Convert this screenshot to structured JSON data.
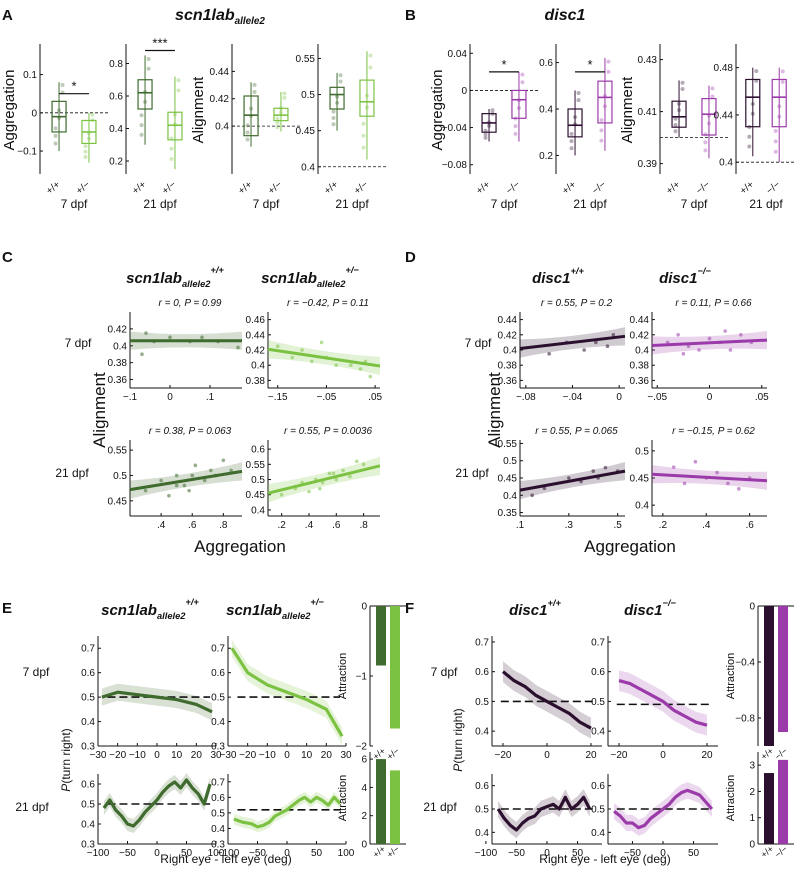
{
  "colors": {
    "scn_wt": "#3f6b2f",
    "scn_mut": "#7cc242",
    "disc_wt": "#2b0f2f",
    "disc_mut": "#9b3aa9"
  },
  "panel_labels": [
    "A",
    "B",
    "C",
    "D",
    "E",
    "F"
  ],
  "headers": {
    "A": {
      "main": "scn1lab",
      "sub": "allele2"
    },
    "B": {
      "main": "disc1"
    },
    "C1": {
      "main": "scn1lab",
      "sub": "allele2",
      "sup": "+/+"
    },
    "C2": {
      "main": "scn1lab",
      "sub": "allele2",
      "sup": "+/−"
    },
    "D1": {
      "main": "disc1",
      "sup": "+/+"
    },
    "D2": {
      "main": "disc1",
      "sup": "−/−"
    },
    "E1": {
      "main": "scn1lab",
      "sub": "allele2",
      "sup": "+/+"
    },
    "E2": {
      "main": "scn1lab",
      "sub": "allele2",
      "sup": "+/−"
    },
    "F1": {
      "main": "disc1",
      "sup": "+/+"
    },
    "F2": {
      "main": "disc1",
      "sup": "−/−"
    }
  },
  "labels": {
    "aggregation": "Aggregation",
    "alignment": "Alignment",
    "attraction": "Attraction",
    "p_turn": "P",
    "p_turn_rest": "(turn right)",
    "xlabel_turn": "Right eye - left eye (deg)",
    "dpf7": "7 dpf",
    "dpf21": "21 dpf",
    "geno_scn": [
      "+/+",
      "+/−"
    ],
    "geno_disc": [
      "+/+",
      "−/−"
    ],
    "geno_scn_tick": [
      "+/+",
      "+/−"
    ],
    "geno_disc_tick": [
      "+/+",
      "−/−"
    ]
  },
  "chart_data": [
    {
      "id": "A-agg-7",
      "type": "box",
      "ylabel": "Aggregation",
      "xlabel": "7 dpf",
      "ylim": [
        -0.16,
        0.18
      ],
      "yticks": [
        -0.1,
        0,
        0.1
      ],
      "refline": 0,
      "categories": [
        "+/+",
        "+/−"
      ],
      "boxes": [
        {
          "q1": -0.05,
          "median": -0.01,
          "q3": 0.03,
          "whislo": -0.1,
          "whishi": 0.08
        },
        {
          "q1": -0.08,
          "median": -0.05,
          "q3": -0.02,
          "whislo": -0.13,
          "whishi": 0.0
        }
      ],
      "sig": {
        "text": "*",
        "pair": [
          0,
          1
        ],
        "y": 0.05
      }
    },
    {
      "id": "A-agg-21",
      "type": "box",
      "ylabel": "",
      "xlabel": "21 dpf",
      "ylim": [
        0.12,
        0.92
      ],
      "yticks": [
        0.2,
        0.4,
        0.6,
        0.8
      ],
      "categories": [
        "+/+",
        "+/−"
      ],
      "boxes": [
        {
          "q1": 0.52,
          "median": 0.62,
          "q3": 0.7,
          "whislo": 0.3,
          "whishi": 0.85
        },
        {
          "q1": 0.33,
          "median": 0.42,
          "q3": 0.5,
          "whislo": 0.15,
          "whishi": 0.72
        }
      ],
      "sig": {
        "text": "***",
        "pair": [
          0,
          1
        ],
        "y": 0.88
      }
    },
    {
      "id": "A-ali-7",
      "type": "box",
      "ylabel": "Alignment",
      "xlabel": "7 dpf",
      "ylim": [
        0.365,
        0.46
      ],
      "yticks": [
        0.4,
        0.42,
        0.44
      ],
      "refline": 0.4,
      "categories": [
        "+/+",
        "+/−"
      ],
      "boxes": [
        {
          "q1": 0.393,
          "median": 0.408,
          "q3": 0.422,
          "whislo": 0.385,
          "whishi": 0.432
        },
        {
          "q1": 0.404,
          "median": 0.408,
          "q3": 0.413,
          "whislo": 0.396,
          "whishi": 0.425
        }
      ]
    },
    {
      "id": "A-ali-21",
      "type": "box",
      "ylabel": "",
      "xlabel": "21 dpf",
      "ylim": [
        0.39,
        0.57
      ],
      "yticks": [
        0.4,
        0.45,
        0.5,
        0.55
      ],
      "refline": 0.4,
      "categories": [
        "+/+",
        "+/−"
      ],
      "boxes": [
        {
          "q1": 0.48,
          "median": 0.5,
          "q3": 0.51,
          "whislo": 0.45,
          "whishi": 0.53
        },
        {
          "q1": 0.47,
          "median": 0.49,
          "q3": 0.52,
          "whislo": 0.41,
          "whishi": 0.56
        }
      ]
    },
    {
      "id": "B-agg-7",
      "type": "box",
      "ylabel": "Aggregation",
      "xlabel": "7 dpf",
      "ylim": [
        -0.09,
        0.05
      ],
      "yticks": [
        -0.08,
        -0.04,
        0,
        0.04
      ],
      "refline": 0,
      "categories": [
        "+/+",
        "−/−"
      ],
      "boxes": [
        {
          "q1": -0.045,
          "median": -0.035,
          "q3": -0.025,
          "whislo": -0.055,
          "whishi": -0.02
        },
        {
          "q1": -0.03,
          "median": -0.01,
          "q3": 0.0,
          "whislo": -0.055,
          "whishi": 0.02
        }
      ],
      "sig": {
        "text": "*",
        "pair": [
          0,
          1
        ],
        "y": 0.02
      }
    },
    {
      "id": "B-agg-21",
      "type": "box",
      "ylabel": "",
      "xlabel": "21 dpf",
      "ylim": [
        0.12,
        0.68
      ],
      "yticks": [
        0.2,
        0.4,
        0.6
      ],
      "categories": [
        "+/+",
        "−/−"
      ],
      "boxes": [
        {
          "q1": 0.28,
          "median": 0.33,
          "q3": 0.4,
          "whislo": 0.2,
          "whishi": 0.48
        },
        {
          "q1": 0.34,
          "median": 0.45,
          "q3": 0.52,
          "whislo": 0.22,
          "whishi": 0.62
        }
      ],
      "sig": {
        "text": "*",
        "pair": [
          0,
          1
        ],
        "y": 0.56
      }
    },
    {
      "id": "B-ali-7",
      "type": "box",
      "ylabel": "Alignment",
      "xlabel": "7 dpf",
      "ylim": [
        0.386,
        0.436
      ],
      "yticks": [
        0.39,
        0.41,
        0.43
      ],
      "refline": 0.4,
      "categories": [
        "+/+",
        "−/−"
      ],
      "boxes": [
        {
          "q1": 0.404,
          "median": 0.408,
          "q3": 0.414,
          "whislo": 0.4,
          "whishi": 0.422
        },
        {
          "q1": 0.401,
          "median": 0.409,
          "q3": 0.415,
          "whislo": 0.392,
          "whishi": 0.42
        }
      ]
    },
    {
      "id": "B-ali-21",
      "type": "box",
      "ylabel": "",
      "xlabel": "21 dpf",
      "ylim": [
        0.39,
        0.5
      ],
      "yticks": [
        0.4,
        0.44,
        0.48
      ],
      "refline": 0.4,
      "categories": [
        "+/+",
        "−/−"
      ],
      "boxes": [
        {
          "q1": 0.43,
          "median": 0.455,
          "q3": 0.47,
          "whislo": 0.405,
          "whishi": 0.48
        },
        {
          "q1": 0.43,
          "median": 0.455,
          "q3": 0.47,
          "whislo": 0.4,
          "whishi": 0.48
        }
      ]
    },
    {
      "id": "C-7-wt",
      "type": "scatter",
      "stat": "r = 0, P = 0.99",
      "xlim": [
        -0.1,
        0.18
      ],
      "xticks": [
        -0.1,
        0,
        0.1
      ],
      "ylim": [
        0.35,
        0.44
      ],
      "yticks": [
        0.36,
        0.38,
        0.4,
        0.42
      ],
      "x": [
        -0.06,
        -0.04,
        0.0,
        0.05,
        0.08,
        0.12,
        0.17,
        -0.07
      ],
      "y": [
        0.415,
        0.405,
        0.41,
        0.405,
        0.41,
        0.405,
        0.398,
        0.39
      ],
      "fit": [
        0.406,
        0.406
      ]
    },
    {
      "id": "C-7-mut",
      "type": "scatter",
      "stat": "r = −0.42, P = 0.11",
      "xlim": [
        -0.17,
        0.06
      ],
      "xticks": [
        -0.15,
        -0.05,
        0.05
      ],
      "ylim": [
        0.37,
        0.47
      ],
      "yticks": [
        0.38,
        0.4,
        0.42,
        0.44,
        0.46
      ],
      "x": [
        -0.15,
        -0.12,
        -0.1,
        -0.08,
        -0.05,
        -0.03,
        0.0,
        0.02,
        0.04,
        -0.06,
        0.03
      ],
      "y": [
        0.425,
        0.41,
        0.42,
        0.405,
        0.41,
        0.4,
        0.4,
        0.395,
        0.385,
        0.43,
        0.405
      ],
      "fit": [
        0.421,
        0.399
      ]
    },
    {
      "id": "C-21-wt",
      "type": "scatter",
      "stat": "r = 0.38, P = 0.063",
      "xlim": [
        0.2,
        0.92
      ],
      "xticks": [
        0.4,
        0.6,
        0.8
      ],
      "ylim": [
        0.42,
        0.57
      ],
      "yticks": [
        0.45,
        0.5,
        0.55
      ],
      "x": [
        0.3,
        0.4,
        0.45,
        0.5,
        0.55,
        0.6,
        0.62,
        0.68,
        0.72,
        0.75,
        0.8,
        0.85,
        0.5,
        0.58
      ],
      "y": [
        0.47,
        0.49,
        0.46,
        0.5,
        0.48,
        0.5,
        0.52,
        0.49,
        0.51,
        0.5,
        0.53,
        0.51,
        0.48,
        0.47
      ],
      "fit": [
        0.472,
        0.508
      ]
    },
    {
      "id": "C-21-mut",
      "type": "scatter",
      "stat": "r = 0.55, P = 0.0036",
      "xlim": [
        0.1,
        0.92
      ],
      "xticks": [
        0.2,
        0.4,
        0.6,
        0.8
      ],
      "ylim": [
        0.38,
        0.63
      ],
      "yticks": [
        0.4,
        0.45,
        0.5,
        0.55,
        0.6
      ],
      "x": [
        0.2,
        0.3,
        0.35,
        0.4,
        0.45,
        0.5,
        0.55,
        0.6,
        0.65,
        0.7,
        0.75,
        0.8,
        0.48,
        0.58
      ],
      "y": [
        0.45,
        0.47,
        0.49,
        0.46,
        0.5,
        0.49,
        0.52,
        0.5,
        0.53,
        0.51,
        0.56,
        0.55,
        0.47,
        0.52
      ],
      "fit": [
        0.455,
        0.545
      ]
    },
    {
      "id": "D-7-wt",
      "type": "scatter",
      "stat": "r = 0.55, P = 0.2",
      "xlim": [
        -0.085,
        0.005
      ],
      "xticks": [
        -0.08,
        -0.04,
        0
      ],
      "ylim": [
        0.35,
        0.45
      ],
      "yticks": [
        0.36,
        0.38,
        0.4,
        0.42,
        0.44
      ],
      "x": [
        -0.06,
        -0.045,
        -0.03,
        -0.02,
        -0.01,
        -0.005
      ],
      "y": [
        0.395,
        0.41,
        0.4,
        0.41,
        0.405,
        0.42
      ],
      "fit": [
        0.402,
        0.418
      ]
    },
    {
      "id": "D-7-mut",
      "type": "scatter",
      "stat": "r = 0.11, P = 0.66",
      "xlim": [
        -0.055,
        0.055
      ],
      "xticks": [
        -0.05,
        0,
        0.05
      ],
      "ylim": [
        0.35,
        0.45
      ],
      "yticks": [
        0.36,
        0.38,
        0.4,
        0.42,
        0.44
      ],
      "x": [
        -0.04,
        -0.03,
        -0.02,
        -0.01,
        0.0,
        0.01,
        0.02,
        0.03,
        0.04,
        -0.025,
        0.015
      ],
      "y": [
        0.41,
        0.42,
        0.405,
        0.4,
        0.415,
        0.41,
        0.4,
        0.42,
        0.41,
        0.395,
        0.425
      ],
      "fit": [
        0.406,
        0.413
      ]
    },
    {
      "id": "D-21-wt",
      "type": "scatter",
      "stat": "r = 0.55, P = 0.065",
      "xlim": [
        0.1,
        0.53
      ],
      "xticks": [
        0.1,
        0.3,
        0.5
      ],
      "ylim": [
        0.34,
        0.56
      ],
      "yticks": [
        0.35,
        0.4,
        0.45,
        0.5,
        0.55
      ],
      "x": [
        0.15,
        0.2,
        0.3,
        0.35,
        0.4,
        0.42,
        0.45,
        0.5
      ],
      "y": [
        0.4,
        0.42,
        0.45,
        0.44,
        0.47,
        0.45,
        0.48,
        0.47
      ],
      "fit": [
        0.415,
        0.47
      ]
    },
    {
      "id": "D-21-mut",
      "type": "scatter",
      "stat": "r = −0.15, P = 0.62",
      "xlim": [
        0.15,
        0.68
      ],
      "xticks": [
        0.2,
        0.4,
        0.6
      ],
      "ylim": [
        0.38,
        0.52
      ],
      "yticks": [
        0.4,
        0.45,
        0.5
      ],
      "x": [
        0.25,
        0.3,
        0.35,
        0.4,
        0.45,
        0.5,
        0.55,
        0.6
      ],
      "y": [
        0.47,
        0.44,
        0.48,
        0.45,
        0.46,
        0.44,
        0.43,
        0.45
      ],
      "fit": [
        0.457,
        0.445
      ]
    },
    {
      "id": "E-7-wt",
      "type": "line",
      "xlim": [
        -30,
        30
      ],
      "xticks": [
        -30,
        -20,
        -10,
        0,
        10,
        20,
        30
      ],
      "ylim": [
        0.3,
        0.75
      ],
      "yticks": [
        0.3,
        0.4,
        0.5,
        0.6,
        0.7
      ],
      "refline": 0.5,
      "x": [
        -28,
        -20,
        -10,
        0,
        10,
        20,
        28
      ],
      "y": [
        0.5,
        0.52,
        0.51,
        0.5,
        0.49,
        0.47,
        0.44
      ]
    },
    {
      "id": "E-7-mut",
      "type": "line",
      "xlim": [
        -30,
        30
      ],
      "xticks": [
        -30,
        -20,
        -10,
        0,
        10,
        20,
        30
      ],
      "ylim": [
        0.3,
        0.75
      ],
      "yticks": [
        0.3,
        0.4,
        0.5,
        0.6,
        0.7
      ],
      "refline": 0.5,
      "x": [
        -28,
        -20,
        -10,
        0,
        10,
        20,
        28
      ],
      "y": [
        0.7,
        0.6,
        0.55,
        0.52,
        0.49,
        0.45,
        0.34
      ]
    },
    {
      "id": "E-21-wt",
      "type": "line",
      "xlim": [
        -100,
        100
      ],
      "xticks": [
        -100,
        -50,
        0,
        50,
        100
      ],
      "ylim": [
        0.3,
        0.65
      ],
      "yticks": [
        0.3,
        0.4,
        0.5,
        0.6
      ],
      "refline": 0.5,
      "x": [
        -90,
        -80,
        -70,
        -60,
        -50,
        -40,
        -30,
        -20,
        -10,
        0,
        10,
        20,
        30,
        40,
        50,
        60,
        70,
        80,
        90
      ],
      "y": [
        0.48,
        0.52,
        0.47,
        0.44,
        0.4,
        0.39,
        0.42,
        0.46,
        0.49,
        0.52,
        0.56,
        0.59,
        0.61,
        0.58,
        0.62,
        0.58,
        0.55,
        0.5,
        0.6
      ]
    },
    {
      "id": "E-21-mut",
      "type": "line",
      "xlim": [
        -100,
        100
      ],
      "xticks": [
        -100,
        -50,
        0,
        50,
        100
      ],
      "ylim": [
        0.3,
        0.75
      ],
      "yticks": [
        0.3,
        0.4,
        0.5,
        0.6,
        0.7
      ],
      "refline": 0.52,
      "x": [
        -90,
        -75,
        -60,
        -50,
        -40,
        -30,
        -20,
        -10,
        0,
        10,
        20,
        30,
        40,
        50,
        60,
        70,
        80,
        90
      ],
      "y": [
        0.46,
        0.44,
        0.43,
        0.41,
        0.42,
        0.44,
        0.48,
        0.5,
        0.52,
        0.55,
        0.58,
        0.6,
        0.57,
        0.6,
        0.58,
        0.55,
        0.6,
        0.56
      ]
    },
    {
      "id": "E-7-attr",
      "type": "bar",
      "ylabel": "Attraction",
      "categories": [
        "+/+",
        "+/−"
      ],
      "values": [
        -0.85,
        -1.75
      ],
      "ylim": [
        -2,
        0
      ],
      "yticks": [
        -2,
        -1,
        0
      ]
    },
    {
      "id": "E-21-attr",
      "type": "bar",
      "ylabel": "Attraction",
      "categories": [
        "+/+",
        "+/−"
      ],
      "values": [
        6,
        5.2
      ],
      "ylim": [
        0,
        6.5
      ],
      "yticks": [
        0,
        2,
        4,
        6
      ]
    },
    {
      "id": "F-7-wt",
      "type": "line",
      "xlim": [
        -25,
        25
      ],
      "xticks": [
        -20,
        0,
        20
      ],
      "ylim": [
        0.35,
        0.72
      ],
      "yticks": [
        0.4,
        0.5,
        0.6,
        0.7
      ],
      "refline": 0.5,
      "x": [
        -20,
        -15,
        -10,
        -5,
        0,
        5,
        10,
        15,
        20
      ],
      "y": [
        0.6,
        0.57,
        0.55,
        0.52,
        0.5,
        0.48,
        0.46,
        0.43,
        0.41
      ]
    },
    {
      "id": "F-7-mut",
      "type": "line",
      "xlim": [
        -25,
        25
      ],
      "xticks": [
        -20,
        0,
        20
      ],
      "ylim": [
        0.35,
        0.72
      ],
      "yticks": [
        0.4,
        0.5,
        0.6,
        0.7
      ],
      "refline": 0.49,
      "x": [
        -20,
        -15,
        -10,
        -5,
        0,
        5,
        10,
        15,
        20
      ],
      "y": [
        0.57,
        0.56,
        0.54,
        0.52,
        0.5,
        0.47,
        0.45,
        0.43,
        0.42
      ]
    },
    {
      "id": "F-21-wt",
      "type": "line",
      "xlim": [
        -90,
        90
      ],
      "xticks": [
        -100,
        -50,
        0,
        50
      ],
      "ylim": [
        0.35,
        0.65
      ],
      "yticks": [
        0.4,
        0.5,
        0.6
      ],
      "refline": 0.5,
      "x": [
        -80,
        -70,
        -60,
        -50,
        -40,
        -30,
        -20,
        -10,
        0,
        10,
        20,
        30,
        40,
        50,
        60,
        70
      ],
      "y": [
        0.5,
        0.46,
        0.43,
        0.41,
        0.44,
        0.46,
        0.47,
        0.5,
        0.51,
        0.52,
        0.5,
        0.55,
        0.5,
        0.52,
        0.55,
        0.5
      ]
    },
    {
      "id": "F-21-mut",
      "type": "line",
      "xlim": [
        -90,
        90
      ],
      "xticks": [
        -50,
        0,
        50
      ],
      "ylim": [
        0.35,
        0.65
      ],
      "yticks": [
        0.4,
        0.5,
        0.6
      ],
      "refline": 0.5,
      "x": [
        -80,
        -70,
        -60,
        -50,
        -40,
        -30,
        -20,
        -10,
        0,
        10,
        20,
        30,
        40,
        50,
        60,
        70,
        80
      ],
      "y": [
        0.49,
        0.47,
        0.44,
        0.44,
        0.42,
        0.43,
        0.46,
        0.48,
        0.5,
        0.52,
        0.55,
        0.57,
        0.58,
        0.57,
        0.56,
        0.53,
        0.5
      ]
    },
    {
      "id": "F-7-attr",
      "type": "bar",
      "ylabel": "Attraction",
      "categories": [
        "+/+",
        "−/−"
      ],
      "values": [
        -1.0,
        -0.9
      ],
      "ylim": [
        -1.0,
        0
      ],
      "yticks": [
        -0.8,
        -0.4,
        0
      ]
    },
    {
      "id": "F-21-attr",
      "type": "bar",
      "ylabel": "Attraction",
      "categories": [
        "+/+",
        "−/−"
      ],
      "values": [
        2.7,
        3.2
      ],
      "ylim": [
        0,
        3.5
      ],
      "yticks": [
        0,
        1,
        2,
        3
      ]
    }
  ]
}
